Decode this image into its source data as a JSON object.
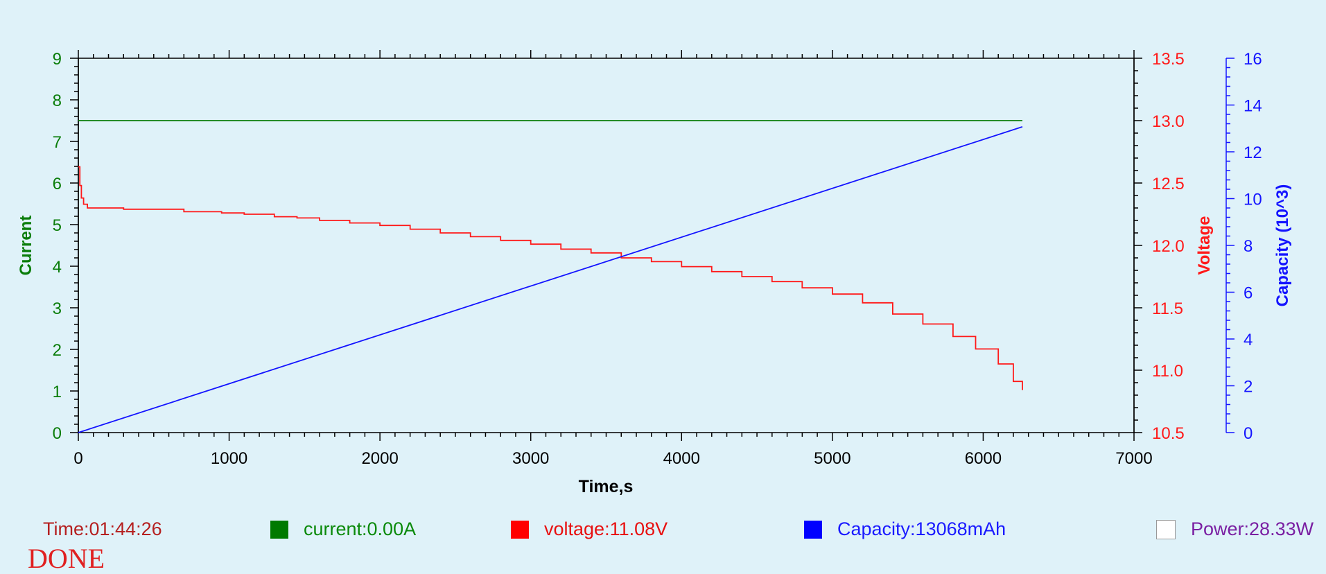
{
  "chart_data": {
    "type": "line",
    "xlabel": "Time,s",
    "xlim": [
      0,
      7000
    ],
    "xticks": [
      "0",
      "1000",
      "2000",
      "3000",
      "4000",
      "5000",
      "6000",
      "7000"
    ],
    "axes": {
      "current": {
        "label": "Current",
        "side": "left",
        "color": "#0a7d0a",
        "ylim": [
          0,
          9
        ],
        "ticks": [
          "0",
          "1",
          "2",
          "3",
          "4",
          "5",
          "6",
          "7",
          "8",
          "9"
        ]
      },
      "voltage": {
        "label": "Voltage",
        "side": "right",
        "color": "#ff1a1a",
        "ylim": [
          10.5,
          13.5
        ],
        "ticks": [
          "10.5",
          "11.0",
          "11.5",
          "12.0",
          "12.5",
          "13.0",
          "13.5"
        ]
      },
      "capacity": {
        "label": "Capacity (10^3)",
        "side": "right-outer",
        "color": "#1414ff",
        "ylim": [
          0,
          16
        ],
        "ticks": [
          "0",
          "2",
          "4",
          "6",
          "8",
          "10",
          "12",
          "14",
          "16"
        ]
      }
    },
    "series": [
      {
        "axis": "current",
        "color": "#0a7d0a",
        "step": false,
        "points": [
          [
            0,
            7.5
          ],
          [
            6260,
            7.5
          ]
        ]
      },
      {
        "axis": "voltage",
        "color": "#ff1a1a",
        "step": true,
        "points": [
          [
            0,
            12.63
          ],
          [
            10,
            12.48
          ],
          [
            20,
            12.38
          ],
          [
            35,
            12.33
          ],
          [
            60,
            12.3
          ],
          [
            300,
            12.29
          ],
          [
            700,
            12.27
          ],
          [
            950,
            12.26
          ],
          [
            1100,
            12.25
          ],
          [
            1300,
            12.23
          ],
          [
            1450,
            12.22
          ],
          [
            1600,
            12.2
          ],
          [
            1800,
            12.18
          ],
          [
            2000,
            12.16
          ],
          [
            2200,
            12.13
          ],
          [
            2400,
            12.1
          ],
          [
            2600,
            12.07
          ],
          [
            2800,
            12.04
          ],
          [
            3000,
            12.01
          ],
          [
            3200,
            11.97
          ],
          [
            3400,
            11.94
          ],
          [
            3600,
            11.9
          ],
          [
            3800,
            11.87
          ],
          [
            4000,
            11.83
          ],
          [
            4200,
            11.79
          ],
          [
            4400,
            11.75
          ],
          [
            4600,
            11.71
          ],
          [
            4800,
            11.66
          ],
          [
            5000,
            11.61
          ],
          [
            5200,
            11.54
          ],
          [
            5400,
            11.45
          ],
          [
            5600,
            11.37
          ],
          [
            5800,
            11.27
          ],
          [
            5950,
            11.17
          ],
          [
            6100,
            11.05
          ],
          [
            6200,
            10.91
          ],
          [
            6260,
            10.84
          ]
        ]
      },
      {
        "axis": "capacity",
        "color": "#1414ff",
        "step": false,
        "points": [
          [
            0,
            0
          ],
          [
            6260,
            13.07
          ]
        ]
      }
    ]
  },
  "status": {
    "time": {
      "text": "Time:01:44:26",
      "color": "#b52020"
    },
    "current": {
      "text": "current:0.00A",
      "color": "#0a8a0a",
      "swatch": "#007a00"
    },
    "voltage": {
      "text": "voltage:11.08V",
      "color": "#e81010",
      "swatch": "#ff0000"
    },
    "capacity": {
      "text": "Capacity:13068mAh",
      "color": "#1a1aff",
      "swatch": "#0000ff"
    },
    "power": {
      "text": "Power:28.33W",
      "color": "#7a1fa2",
      "swatch": "#ffffff"
    },
    "done": "DONE"
  }
}
